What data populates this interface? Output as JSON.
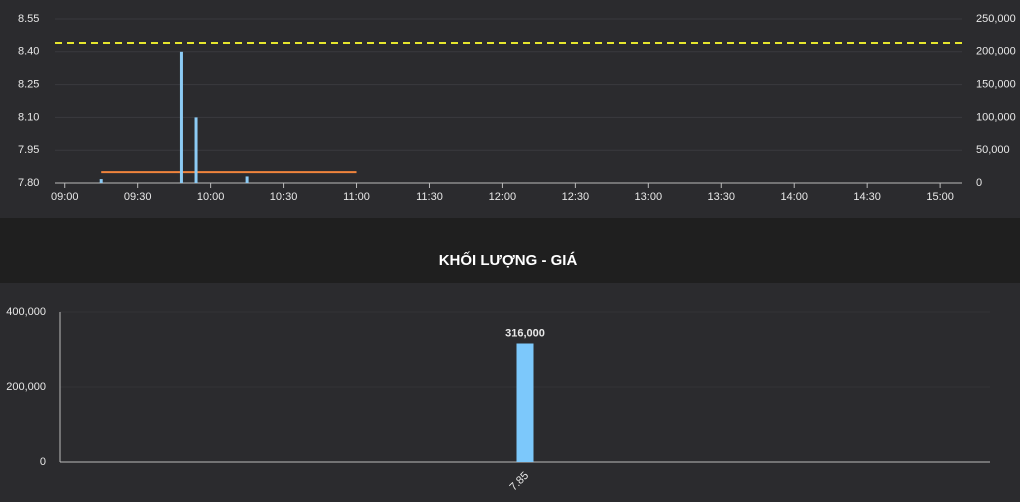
{
  "chart_data": [
    {
      "type": "combo",
      "xlim": [
        "08:56",
        "15:09"
      ],
      "xticks": [
        "09:00",
        "09:30",
        "10:00",
        "10:30",
        "11:00",
        "11:30",
        "12:00",
        "12:30",
        "13:00",
        "13:30",
        "14:00",
        "14:30",
        "15:00"
      ],
      "ylim": [
        7.8,
        8.55
      ],
      "yticks": [
        {
          "value": 7.8,
          "label": "7.80"
        },
        7.95,
        {
          "value": 8.1,
          "label": "8.10"
        },
        8.25,
        {
          "value": 8.4,
          "label": "8.40"
        },
        8.55
      ],
      "y2lim": [
        0,
        250000
      ],
      "y2ticks": [
        0,
        {
          "value": 50000,
          "label": "50,000"
        },
        {
          "value": 100000,
          "label": "100,000"
        },
        {
          "value": 150000,
          "label": "150,000"
        },
        {
          "value": 200000,
          "label": "200,000"
        },
        {
          "value": 250000,
          "label": "250,000"
        }
      ],
      "grid": true,
      "reference_line": {
        "value": 8.44,
        "color": "#e6e62e"
      },
      "series": [
        {
          "type": "line",
          "color": "#f0843c",
          "x": [
            "09:15",
            "11:00"
          ],
          "values": [
            7.85,
            7.85
          ]
        },
        {
          "type": "bar",
          "axis": "y2",
          "color": "#8ccbf5",
          "x": [
            "09:15",
            "09:48",
            "09:54",
            "10:15"
          ],
          "values": [
            6000,
            200000,
            100000,
            10000
          ]
        }
      ]
    },
    {
      "type": "bar",
      "title": "KHỐI LƯỢNG - GIÁ",
      "categories": [
        "7.85"
      ],
      "values": [
        316000
      ],
      "value_labels": [
        "316,000"
      ],
      "color": "#7cc8fb",
      "ylim": [
        0,
        400000
      ],
      "yticks": [
        0,
        {
          "value": 200000,
          "label": "200,000"
        },
        {
          "value": 400000,
          "label": "400,000"
        }
      ],
      "grid": true
    }
  ]
}
